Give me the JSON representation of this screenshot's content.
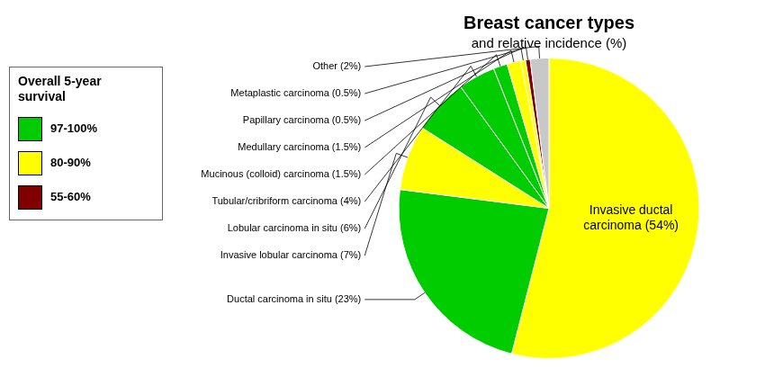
{
  "chart_data": {
    "type": "pie",
    "title": "Breast cancer types",
    "subtitle": "and relative incidence (%)",
    "categories": [
      "Invasive ductal\ncarcinoma (54%)",
      "Ductal carcinoma in situ (23%)",
      "Invasive lobular carcinoma (7%)",
      "Lobular carcinoma in situ (6%)",
      "Tubular/cribriform carcinoma (4%)",
      "Mucinous (colloid) carcinoma (1.5%)",
      "Medullary carcinoma (1.5%)",
      "Papillary carcinoma (0.5%)",
      "Metaplastic carcinoma (0.5%)",
      "Other (2%)"
    ],
    "values": [
      54,
      23,
      7,
      6,
      4,
      1.5,
      1.5,
      0.5,
      0.5,
      2
    ],
    "colors": [
      "#ffff00",
      "#00cc00",
      "#ffff00",
      "#00cc00",
      "#00cc00",
      "#00cc00",
      "#ffff00",
      "#ffff00",
      "#800000",
      "#c8c8c8"
    ],
    "legend": "upper left",
    "legend_title": "Overall 5-year\nsurvival",
    "legend_items": [
      {
        "name": "97-100%",
        "color": "#00cc00"
      },
      {
        "name": "80-90%",
        "color": "#ffff00"
      },
      {
        "name": "55-60%",
        "color": "#800000"
      }
    ]
  }
}
